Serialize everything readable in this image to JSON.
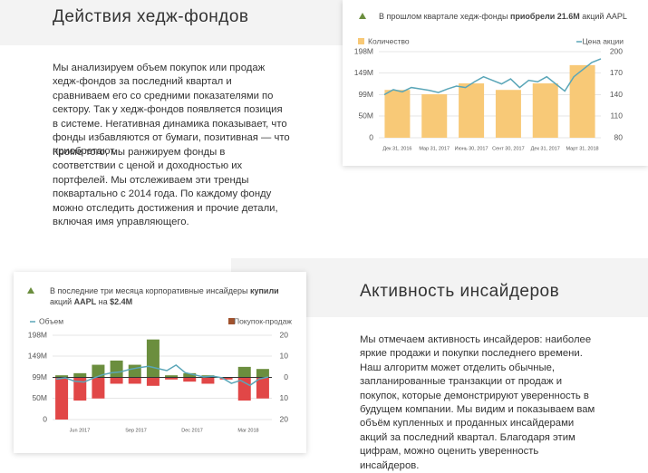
{
  "hedge_section": {
    "title": "Действия хедж-фондов",
    "paragraphs": [
      "Мы анализируем объем покупок или продаж хедж-фондов за последний квартал и сравниваем его со средними показателями по сектору. Так у хедж-фондов появляется позиция в системе. Негативная динамика показывает, что фонды избавляются от бумаги, позитивная — что приобретают.",
      "Кроме того, мы ранжируем фонды в соответствии с ценой и доходностью их портфелей. Мы отслеживаем эти тренды поквартально с 2014 года. По каждому фонду можно отследить достижения и прочие детали, включая имя управляющего."
    ]
  },
  "hedge_chart": {
    "type": "bar",
    "header": [
      "В прошлом квартале хедж-фонды ",
      "приобрели 21.6M",
      " акций AAPL"
    ],
    "categories": [
      "Дек 31, 2016",
      "Мар 31, 2017",
      "Июнь 30, 2017",
      "Сент 30, 2017",
      "Дек 31, 2017",
      "Март 31, 2018"
    ],
    "series": [
      {
        "name": "Количество",
        "color": "#f8c977",
        "values": [
          110,
          100,
          125,
          110,
          125,
          167
        ]
      },
      {
        "name": "Цена акции",
        "color": "#5aa6b8",
        "axis": "y2",
        "values": [
          140,
          147,
          144,
          150,
          148,
          146,
          143,
          148,
          152,
          150,
          158,
          165,
          160,
          155,
          162,
          150,
          160,
          158,
          165,
          155,
          145,
          165,
          175,
          185,
          190
        ]
      }
    ],
    "ylim": [
      0,
      198
    ],
    "yticks": [
      0,
      {
        "value": 50,
        "label": "50M"
      },
      {
        "value": 99,
        "label": "99M"
      },
      {
        "value": 149,
        "label": "149M"
      },
      {
        "value": 198,
        "label": "198M"
      }
    ],
    "y2lim": [
      80,
      200
    ],
    "y2ticks": [
      80,
      110,
      140,
      170,
      200
    ],
    "grid": true
  },
  "insider_section": {
    "title": "Активность инсайдеров",
    "paragraphs": [
      "Мы отмечаем активность инсайдеров: наиболее яркие продажи и покупки последнего времени. Наш алгоритм может отделить обычные, запланированные транзакции от продаж и покупок, которые демонстрируют уверенность в будущем компании. Мы видим и показываем вам объём купленных и проданных инсайдерами акций за последний квартал. Благодаря этим цифрам, можно оценить уверенность инсайдеров."
    ]
  },
  "insider_chart": {
    "type": "bar",
    "header": [
      "В последние три месяца корпоративные инсайдеры ",
      "купили",
      "\nакций ",
      "AAPL",
      " на ",
      "$2.4M"
    ],
    "legend": [
      "Объем",
      "Покупок-продаж"
    ],
    "line": {
      "color": "#5aa6b8",
      "values": [
        95,
        98,
        90,
        88,
        97,
        105,
        110,
        112,
        118,
        122,
        125,
        120,
        115,
        128,
        110,
        105,
        100,
        102,
        98,
        85,
        92,
        80,
        95,
        100
      ]
    },
    "buys": {
      "color": "#6b8e3e",
      "values": [
        1,
        2,
        6,
        8,
        6,
        18,
        1,
        2,
        1,
        0,
        5,
        4
      ]
    },
    "sells": {
      "color": "#e14747",
      "values": [
        -20,
        -11,
        -10,
        -3,
        -3,
        -4,
        -1,
        -2,
        -3,
        -1,
        -11,
        -10
      ]
    },
    "legend_color": "#a0522d",
    "xlabels": [
      "Jun 2017",
      "Sep 2017",
      "Dec 2017",
      "Mar 2018"
    ],
    "ylim": [
      0,
      198
    ],
    "yticks": [
      0,
      {
        "value": 50,
        "label": "50M"
      },
      {
        "value": 99,
        "label": "99M"
      },
      {
        "value": 149,
        "label": "149M"
      },
      {
        "value": 198,
        "label": "198M"
      }
    ],
    "y2lim": [
      -20,
      20
    ],
    "y2ticks": [
      {
        "value": -20,
        "label": "20"
      },
      {
        "value": -10,
        "label": "10"
      },
      0,
      10,
      20
    ],
    "grid": true
  }
}
